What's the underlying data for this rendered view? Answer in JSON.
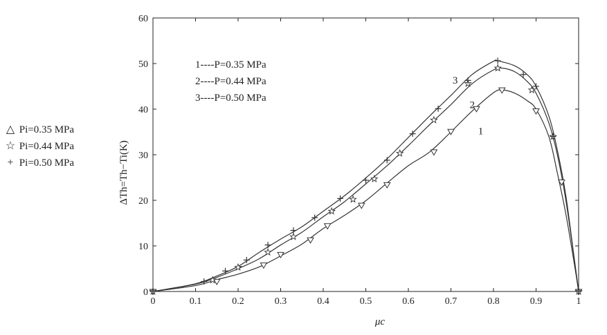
{
  "chart_data": {
    "type": "line",
    "xlabel": "μc",
    "ylabel": "ΔTh=Th−Ti(K)",
    "xlim": [
      0,
      1
    ],
    "ylim": [
      0,
      60
    ],
    "x_ticks": [
      "0",
      "0.1",
      "0.2",
      "0.3",
      "0.4",
      "0.5",
      "0.6",
      "0.7",
      "0.8",
      "0.9",
      "1"
    ],
    "y_ticks": [
      "0",
      "10",
      "20",
      "30",
      "40",
      "50",
      "60"
    ],
    "grid": false,
    "legend_lines": [
      "1----P=0.35 MPa",
      "2----P=0.44 MPa",
      "3----P=0.50 MPa"
    ],
    "legend_markers": [
      {
        "symbol": "△",
        "label": "Pi=0.35 MPa"
      },
      {
        "symbol": "☆",
        "label": "Pi=0.44 MPa"
      },
      {
        "symbol": "+",
        "label": "Pi=0.50 MPa"
      }
    ],
    "series": [
      {
        "name": "1",
        "marker": "triangle-down",
        "curve": [
          [
            0,
            0
          ],
          [
            0.1,
            1.3
          ],
          [
            0.15,
            2.6
          ],
          [
            0.2,
            3.8
          ],
          [
            0.25,
            5.4
          ],
          [
            0.3,
            7.8
          ],
          [
            0.35,
            10.4
          ],
          [
            0.4,
            13.8
          ],
          [
            0.45,
            16.7
          ],
          [
            0.5,
            19.9
          ],
          [
            0.55,
            23.8
          ],
          [
            0.6,
            27.6
          ],
          [
            0.65,
            30.6
          ],
          [
            0.7,
            35.0
          ],
          [
            0.75,
            39.6
          ],
          [
            0.8,
            43.6
          ],
          [
            0.82,
            44.2
          ],
          [
            0.85,
            43.5
          ],
          [
            0.88,
            41.8
          ],
          [
            0.9,
            40.0
          ],
          [
            0.93,
            34.0
          ],
          [
            0.95,
            26.0
          ],
          [
            0.97,
            17.0
          ],
          [
            0.99,
            6.0
          ],
          [
            1.0,
            0
          ]
        ],
        "markers": [
          [
            0,
            0
          ],
          [
            0.15,
            2.2
          ],
          [
            0.26,
            5.8
          ],
          [
            0.3,
            8.1
          ],
          [
            0.37,
            11.3
          ],
          [
            0.41,
            14.4
          ],
          [
            0.49,
            18.9
          ],
          [
            0.55,
            23.4
          ],
          [
            0.66,
            30.6
          ],
          [
            0.7,
            35.1
          ],
          [
            0.76,
            40.1
          ],
          [
            0.82,
            44.2
          ],
          [
            0.9,
            39.6
          ],
          [
            0.96,
            24.0
          ],
          [
            1.0,
            0
          ]
        ]
      },
      {
        "name": "2",
        "marker": "star",
        "curve": [
          [
            0,
            0
          ],
          [
            0.1,
            1.6
          ],
          [
            0.15,
            3.1
          ],
          [
            0.2,
            5.0
          ],
          [
            0.25,
            7.2
          ],
          [
            0.3,
            10.2
          ],
          [
            0.35,
            13.0
          ],
          [
            0.4,
            16.4
          ],
          [
            0.45,
            19.7
          ],
          [
            0.5,
            23.6
          ],
          [
            0.55,
            27.6
          ],
          [
            0.6,
            32.0
          ],
          [
            0.65,
            36.6
          ],
          [
            0.7,
            41.0
          ],
          [
            0.75,
            45.6
          ],
          [
            0.8,
            48.6
          ],
          [
            0.82,
            49.0
          ],
          [
            0.85,
            48.2
          ],
          [
            0.88,
            46.0
          ],
          [
            0.9,
            43.5
          ],
          [
            0.93,
            37.0
          ],
          [
            0.95,
            30.0
          ],
          [
            0.97,
            20.0
          ],
          [
            0.99,
            7.0
          ],
          [
            1.0,
            0
          ]
        ],
        "markers": [
          [
            0,
            0
          ],
          [
            0.14,
            2.5
          ],
          [
            0.2,
            5.3
          ],
          [
            0.27,
            8.6
          ],
          [
            0.33,
            12.0
          ],
          [
            0.42,
            17.6
          ],
          [
            0.47,
            20.2
          ],
          [
            0.52,
            24.7
          ],
          [
            0.58,
            30.3
          ],
          [
            0.66,
            37.6
          ],
          [
            0.74,
            45.6
          ],
          [
            0.81,
            49.0
          ],
          [
            0.89,
            44.2
          ],
          [
            0.94,
            34.0
          ],
          [
            1.0,
            0
          ]
        ]
      },
      {
        "name": "3",
        "marker": "plus",
        "curve": [
          [
            0,
            0
          ],
          [
            0.1,
            1.7
          ],
          [
            0.15,
            3.4
          ],
          [
            0.2,
            5.5
          ],
          [
            0.25,
            8.6
          ],
          [
            0.3,
            11.5
          ],
          [
            0.35,
            14.2
          ],
          [
            0.4,
            17.6
          ],
          [
            0.45,
            21.0
          ],
          [
            0.5,
            24.9
          ],
          [
            0.55,
            29.1
          ],
          [
            0.6,
            33.8
          ],
          [
            0.65,
            38.5
          ],
          [
            0.7,
            43.0
          ],
          [
            0.75,
            47.6
          ],
          [
            0.8,
            50.5
          ],
          [
            0.81,
            50.6
          ],
          [
            0.85,
            49.5
          ],
          [
            0.88,
            47.5
          ],
          [
            0.9,
            45.0
          ],
          [
            0.93,
            38.5
          ],
          [
            0.95,
            31.0
          ],
          [
            0.97,
            21.0
          ],
          [
            0.99,
            7.0
          ],
          [
            1.0,
            0
          ]
        ],
        "markers": [
          [
            0,
            0
          ],
          [
            0.12,
            2.2
          ],
          [
            0.17,
            4.5
          ],
          [
            0.22,
            6.9
          ],
          [
            0.27,
            10.2
          ],
          [
            0.33,
            13.4
          ],
          [
            0.38,
            16.2
          ],
          [
            0.44,
            20.4
          ],
          [
            0.5,
            24.4
          ],
          [
            0.55,
            28.8
          ],
          [
            0.61,
            34.6
          ],
          [
            0.67,
            40.1
          ],
          [
            0.74,
            46.3
          ],
          [
            0.81,
            50.6
          ],
          [
            0.87,
            47.6
          ],
          [
            0.9,
            45.0
          ],
          [
            0.94,
            34.0
          ],
          [
            1.0,
            0
          ]
        ]
      }
    ],
    "curve_labels": [
      {
        "text": "1",
        "x": 0.77,
        "y": 34.5
      },
      {
        "text": "2",
        "x": 0.75,
        "y": 40.2
      },
      {
        "text": "3",
        "x": 0.71,
        "y": 45.6
      }
    ]
  },
  "colors": {
    "line": "#333333",
    "axis": "#222222",
    "background": "#ffffff"
  }
}
